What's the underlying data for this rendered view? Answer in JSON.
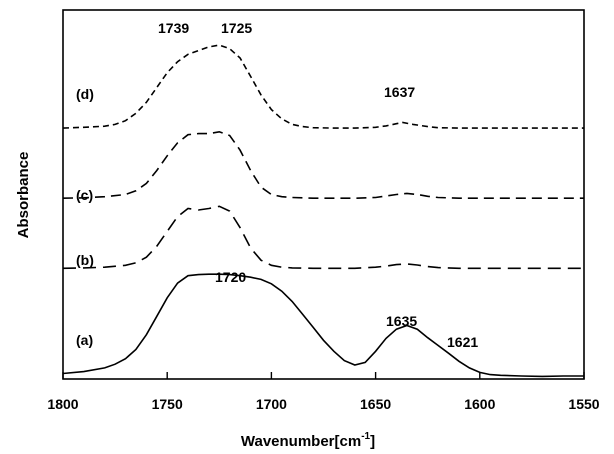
{
  "chart_data": {
    "type": "line",
    "title": "",
    "xlabel_main": "Wavenumber[cm",
    "xlabel_sup": "-1",
    "xlabel_end": "]",
    "ylabel": "Absorbance",
    "xlim": [
      1800,
      1550
    ],
    "x_reversed": true,
    "ylim": [
      0,
      1
    ],
    "y_ticks_shown": false,
    "grid": false,
    "legend": "none",
    "x_ticks": [
      1800,
      1750,
      1700,
      1650,
      1600,
      1550
    ],
    "x_tick_labels": [
      "1800",
      "1750",
      "1700",
      "1650",
      "1600",
      "1550"
    ],
    "series": [
      {
        "name": "(a)",
        "style": "solid",
        "color": "#000000",
        "x": [
          1800,
          1790,
          1780,
          1775,
          1770,
          1765,
          1760,
          1755,
          1750,
          1745,
          1740,
          1735,
          1730,
          1725,
          1720,
          1715,
          1710,
          1705,
          1700,
          1695,
          1690,
          1685,
          1680,
          1675,
          1670,
          1665,
          1660,
          1655,
          1650,
          1645,
          1640,
          1635,
          1630,
          1625,
          1621,
          1615,
          1610,
          1605,
          1600,
          1595,
          1590,
          1580,
          1570,
          1560,
          1550
        ],
        "y": [
          0.015,
          0.02,
          0.03,
          0.04,
          0.055,
          0.08,
          0.12,
          0.17,
          0.22,
          0.26,
          0.28,
          0.283,
          0.284,
          0.284,
          0.283,
          0.28,
          0.276,
          0.27,
          0.258,
          0.238,
          0.21,
          0.175,
          0.14,
          0.105,
          0.075,
          0.05,
          0.038,
          0.045,
          0.075,
          0.11,
          0.135,
          0.145,
          0.135,
          0.112,
          0.095,
          0.07,
          0.048,
          0.03,
          0.018,
          0.012,
          0.01,
          0.008,
          0.007,
          0.008,
          0.008
        ]
      },
      {
        "name": "(b)",
        "style": "dashed-long",
        "color": "#000000",
        "x": [
          1800,
          1790,
          1780,
          1770,
          1765,
          1760,
          1755,
          1750,
          1745,
          1740,
          1735,
          1730,
          1725,
          1720,
          1715,
          1710,
          1705,
          1700,
          1695,
          1690,
          1680,
          1670,
          1660,
          1650,
          1645,
          1640,
          1635,
          1630,
          1625,
          1620,
          1610,
          1600,
          1590,
          1580,
          1570,
          1560,
          1550
        ],
        "y": [
          0.3,
          0.301,
          0.303,
          0.308,
          0.315,
          0.33,
          0.36,
          0.4,
          0.44,
          0.462,
          0.458,
          0.462,
          0.468,
          0.455,
          0.41,
          0.355,
          0.322,
          0.308,
          0.303,
          0.301,
          0.3,
          0.3,
          0.3,
          0.303,
          0.306,
          0.31,
          0.312,
          0.309,
          0.305,
          0.302,
          0.3,
          0.3,
          0.3,
          0.3,
          0.3,
          0.3,
          0.3
        ]
      },
      {
        "name": "(c)",
        "style": "dashed-medium",
        "color": "#000000",
        "x": [
          1800,
          1790,
          1780,
          1770,
          1765,
          1760,
          1755,
          1750,
          1745,
          1740,
          1735,
          1730,
          1725,
          1720,
          1715,
          1710,
          1705,
          1700,
          1695,
          1690,
          1680,
          1670,
          1660,
          1650,
          1645,
          1640,
          1635,
          1630,
          1625,
          1620,
          1610,
          1600,
          1590,
          1580,
          1570,
          1560,
          1550
        ],
        "y": [
          0.49,
          0.491,
          0.494,
          0.5,
          0.51,
          0.53,
          0.565,
          0.605,
          0.64,
          0.662,
          0.665,
          0.665,
          0.67,
          0.66,
          0.62,
          0.565,
          0.52,
          0.5,
          0.494,
          0.492,
          0.49,
          0.49,
          0.49,
          0.492,
          0.496,
          0.5,
          0.503,
          0.5,
          0.495,
          0.492,
          0.49,
          0.49,
          0.49,
          0.49,
          0.49,
          0.49,
          0.49
        ]
      },
      {
        "name": "(d)",
        "style": "dashed-short",
        "color": "#000000",
        "x": [
          1800,
          1790,
          1780,
          1775,
          1770,
          1765,
          1760,
          1755,
          1750,
          1745,
          1740,
          1735,
          1730,
          1725,
          1720,
          1715,
          1710,
          1705,
          1700,
          1695,
          1690,
          1685,
          1680,
          1670,
          1660,
          1650,
          1645,
          1640,
          1637,
          1632,
          1625,
          1620,
          1610,
          1600,
          1590,
          1580,
          1570,
          1560,
          1550
        ],
        "y": [
          0.68,
          0.682,
          0.685,
          0.69,
          0.7,
          0.72,
          0.75,
          0.79,
          0.83,
          0.86,
          0.88,
          0.89,
          0.9,
          0.905,
          0.895,
          0.87,
          0.82,
          0.77,
          0.73,
          0.705,
          0.69,
          0.684,
          0.681,
          0.68,
          0.68,
          0.682,
          0.686,
          0.692,
          0.695,
          0.69,
          0.684,
          0.681,
          0.68,
          0.68,
          0.68,
          0.68,
          0.68,
          0.68,
          0.68
        ]
      }
    ],
    "curve_labels": [
      {
        "text": "(a)",
        "series": "(a)"
      },
      {
        "text": "(b)",
        "series": "(b)"
      },
      {
        "text": "(c)",
        "series": "(c)"
      },
      {
        "text": "(d)",
        "series": "(d)"
      }
    ],
    "annotations": [
      {
        "text": "1720",
        "x": 1720,
        "series": "(a)"
      },
      {
        "text": "1635",
        "x": 1635,
        "series": "(a)"
      },
      {
        "text": "1621",
        "x": 1621,
        "series": "(a)"
      },
      {
        "text": "1739",
        "x": 1739,
        "series": "(d)"
      },
      {
        "text": "1725",
        "x": 1725,
        "series": "(d)"
      },
      {
        "text": "1637",
        "x": 1637,
        "series": "(d)"
      }
    ]
  }
}
